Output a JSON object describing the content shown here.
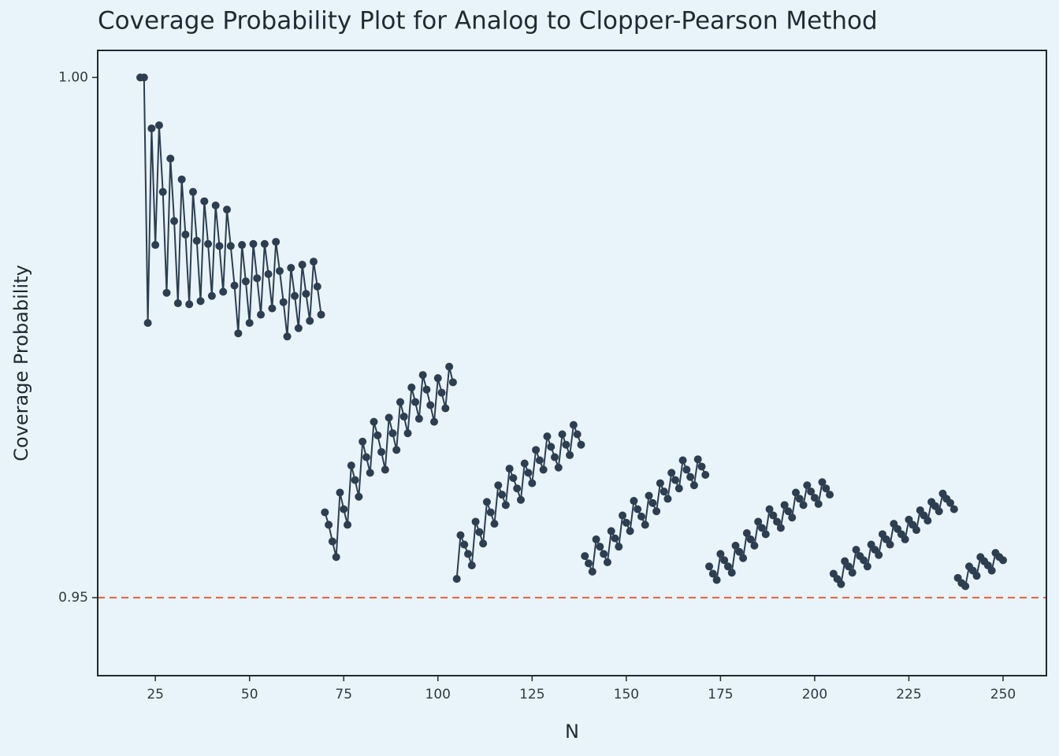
{
  "chart_data": {
    "type": "line",
    "title": "Coverage Probability Plot for Analog to Clopper-Pearson Method",
    "x_label": "N",
    "y_label": "Coverage Probability",
    "xlim": [
      9.7,
      261.5
    ],
    "ylim": [
      0.9425,
      1.0026
    ],
    "xticks": [
      25,
      50,
      75,
      100,
      125,
      150,
      175,
      200,
      225,
      250
    ],
    "yticks": [
      0.95,
      {
        "value": 1.0,
        "label": "1.00"
      }
    ],
    "hline": 0.95,
    "hline_color": "#e5603f",
    "series": [
      {
        "color": "#2c3e50",
        "x": [
          21,
          22,
          23,
          24,
          25,
          26,
          27,
          28,
          29,
          30,
          31,
          32,
          33,
          34,
          35,
          36,
          37,
          38,
          39,
          40,
          41,
          42,
          43,
          44,
          45,
          46,
          47,
          48,
          49,
          50,
          51,
          52,
          53,
          54,
          55,
          56,
          57,
          58,
          59,
          60,
          61,
          62,
          63,
          64,
          65,
          66,
          67,
          68,
          69
        ],
        "values": [
          1.0,
          1.0,
          0.9764,
          0.9951,
          0.9839,
          0.9954,
          0.989,
          0.9793,
          0.9922,
          0.9862,
          0.9783,
          0.9902,
          0.9849,
          0.9782,
          0.989,
          0.9843,
          0.9785,
          0.9881,
          0.984,
          0.979,
          0.9877,
          0.9838,
          0.9794,
          0.9873,
          0.9838,
          0.98,
          0.9754,
          0.9839,
          0.9804,
          0.9764,
          0.984,
          0.9807,
          0.9772,
          0.984,
          0.9811,
          0.9778,
          0.9842,
          0.9814,
          0.9784,
          0.9751,
          0.9817,
          0.979,
          0.9759,
          0.982,
          0.9792,
          0.9766,
          0.9823,
          0.9799,
          0.9772
        ]
      },
      {
        "color": "#2c3e50",
        "x": [
          70,
          71,
          72,
          73,
          74,
          75,
          76,
          77,
          78,
          79,
          80,
          81,
          82,
          83,
          84,
          85,
          86,
          87,
          88,
          89,
          90,
          91,
          92,
          93,
          94,
          95,
          96,
          97,
          98,
          99,
          100,
          101,
          102,
          103,
          104
        ],
        "values": [
          0.9582,
          0.957,
          0.9554,
          0.9539,
          0.9601,
          0.9585,
          0.957,
          0.9627,
          0.9613,
          0.9597,
          0.965,
          0.9635,
          0.962,
          0.9669,
          0.9656,
          0.964,
          0.9623,
          0.9673,
          0.9658,
          0.9642,
          0.9688,
          0.9674,
          0.9658,
          0.9702,
          0.9688,
          0.9672,
          0.9714,
          0.97,
          0.9685,
          0.9669,
          0.9711,
          0.9697,
          0.9682,
          0.9722,
          0.9707
        ]
      },
      {
        "color": "#2c3e50",
        "x": [
          105,
          106,
          107,
          108,
          109,
          110,
          111,
          112,
          113,
          114,
          115,
          116,
          117,
          118,
          119,
          120,
          121,
          122,
          123,
          124,
          125,
          126,
          127,
          128,
          129,
          130,
          131,
          132,
          133,
          134,
          135,
          136,
          137,
          138
        ],
        "values": [
          0.9518,
          0.956,
          0.9551,
          0.9542,
          0.9531,
          0.9573,
          0.9563,
          0.9552,
          0.9592,
          0.9582,
          0.9571,
          0.9608,
          0.9599,
          0.9589,
          0.9624,
          0.9615,
          0.9605,
          0.9594,
          0.9629,
          0.962,
          0.961,
          0.9642,
          0.9632,
          0.9623,
          0.9655,
          0.9645,
          0.9635,
          0.9625,
          0.9657,
          0.9647,
          0.9637,
          0.9666,
          0.9657,
          0.9647
        ]
      },
      {
        "color": "#2c3e50",
        "x": [
          139,
          140,
          141,
          142,
          143,
          144,
          145,
          146,
          147,
          148,
          149,
          150,
          151,
          152,
          153,
          154,
          155,
          156,
          157,
          158,
          159,
          160,
          161,
          162,
          163,
          164,
          165,
          166,
          167,
          168,
          169,
          170,
          171
        ],
        "values": [
          0.954,
          0.9533,
          0.9525,
          0.9556,
          0.9549,
          0.9542,
          0.9534,
          0.9564,
          0.9557,
          0.9549,
          0.9579,
          0.9572,
          0.9564,
          0.9593,
          0.9585,
          0.9578,
          0.957,
          0.9598,
          0.9591,
          0.9583,
          0.961,
          0.9602,
          0.9595,
          0.962,
          0.9613,
          0.9605,
          0.9632,
          0.9623,
          0.9616,
          0.9608,
          0.9633,
          0.9626,
          0.9618
        ]
      },
      {
        "color": "#2c3e50",
        "x": [
          172,
          173,
          174,
          175,
          176,
          177,
          178,
          179,
          180,
          181,
          182,
          183,
          184,
          185,
          186,
          187,
          188,
          189,
          190,
          191,
          192,
          193,
          194,
          195,
          196,
          197,
          198,
          199,
          200,
          201,
          202,
          203,
          204
        ],
        "values": [
          0.953,
          0.9523,
          0.9517,
          0.9542,
          0.9536,
          0.953,
          0.9524,
          0.955,
          0.9544,
          0.9538,
          0.9562,
          0.9556,
          0.955,
          0.9573,
          0.9567,
          0.9561,
          0.9585,
          0.9579,
          0.9573,
          0.9567,
          0.9589,
          0.9583,
          0.9577,
          0.9601,
          0.9595,
          0.9589,
          0.9608,
          0.9602,
          0.9596,
          0.959,
          0.9611,
          0.9605,
          0.9599
        ]
      },
      {
        "color": "#2c3e50",
        "x": [
          205,
          206,
          207,
          208,
          209,
          210,
          211,
          212,
          213,
          214,
          215,
          216,
          217,
          218,
          219,
          220,
          221,
          222,
          223,
          224,
          225,
          226,
          227,
          228,
          229,
          230,
          231,
          232,
          233,
          234,
          235,
          236,
          237
        ],
        "values": [
          0.9523,
          0.9518,
          0.9513,
          0.9535,
          0.953,
          0.9524,
          0.9546,
          0.954,
          0.9536,
          0.953,
          0.9551,
          0.9546,
          0.9541,
          0.9561,
          0.9556,
          0.9551,
          0.9571,
          0.9566,
          0.9561,
          0.9556,
          0.9575,
          0.957,
          0.9565,
          0.9584,
          0.9579,
          0.9574,
          0.9592,
          0.9588,
          0.9583,
          0.96,
          0.9595,
          0.9591,
          0.9585
        ]
      },
      {
        "color": "#2c3e50",
        "x": [
          238,
          239,
          240,
          241,
          242,
          243,
          244,
          245,
          246,
          247,
          248,
          249,
          250
        ],
        "values": [
          0.9519,
          0.9514,
          0.9511,
          0.953,
          0.9526,
          0.9521,
          0.9539,
          0.9535,
          0.9531,
          0.9526,
          0.9543,
          0.9539,
          0.9536
        ]
      }
    ]
  }
}
